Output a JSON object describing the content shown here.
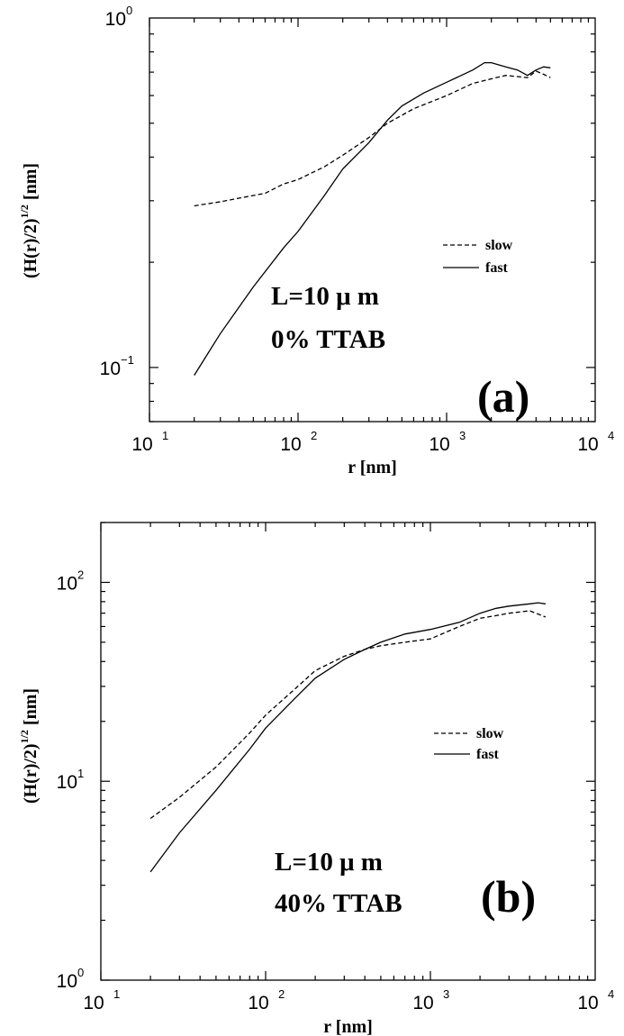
{
  "chart_data": [
    {
      "type": "line",
      "panel_label": "(a)",
      "annotation_lines": [
        "L=10 μ m",
        "0% TTAB"
      ],
      "xlabel": "r [nm]",
      "ylabel": {
        "main": "(H(r)/2)",
        "sup": "1/2",
        "unit": " [nm]"
      },
      "x_scale": "log",
      "y_scale": "log",
      "xlim": [
        10,
        10000
      ],
      "ylim": [
        0.07,
        1
      ],
      "x_ticks": [
        {
          "value": 10,
          "base": "10",
          "exp": "1"
        },
        {
          "value": 100,
          "base": "10",
          "exp": "2"
        },
        {
          "value": 1000,
          "base": "10",
          "exp": "3"
        },
        {
          "value": 10000,
          "base": "10",
          "exp": "4"
        }
      ],
      "y_ticks": [
        {
          "value": 0.1,
          "base": "10",
          "exp": "−1"
        },
        {
          "value": 1,
          "base": "10",
          "exp": "0"
        }
      ],
      "grid": false,
      "legend_position": "right",
      "series": [
        {
          "name": "slow",
          "dash": "dashed",
          "color": "#000000",
          "x": [
            20,
            30,
            40,
            60,
            80,
            100,
            150,
            200,
            300,
            400,
            600,
            1000,
            1500,
            2000,
            2500,
            3000,
            3500,
            4000,
            4500,
            5000
          ],
          "y": [
            0.29,
            0.298,
            0.305,
            0.315,
            0.335,
            0.345,
            0.375,
            0.405,
            0.455,
            0.5,
            0.55,
            0.6,
            0.65,
            0.67,
            0.685,
            0.68,
            0.675,
            0.705,
            0.69,
            0.675
          ]
        },
        {
          "name": "fast",
          "dash": "solid",
          "color": "#000000",
          "x": [
            20,
            30,
            50,
            80,
            100,
            150,
            200,
            300,
            400,
            500,
            700,
            1000,
            1500,
            1800,
            2000,
            2500,
            3000,
            3500,
            4000,
            4500,
            5000
          ],
          "y": [
            0.095,
            0.125,
            0.17,
            0.22,
            0.245,
            0.31,
            0.37,
            0.44,
            0.51,
            0.56,
            0.61,
            0.655,
            0.71,
            0.745,
            0.745,
            0.725,
            0.71,
            0.685,
            0.71,
            0.725,
            0.72
          ]
        }
      ]
    },
    {
      "type": "line",
      "panel_label": "(b)",
      "annotation_lines": [
        "L=10 μ m",
        "40% TTAB"
      ],
      "xlabel": "r [nm]",
      "ylabel": {
        "main": "(H(r)/2)",
        "sup": "1/2",
        "unit": " [nm]"
      },
      "x_scale": "log",
      "y_scale": "log",
      "xlim": [
        10,
        10000
      ],
      "ylim": [
        1,
        200
      ],
      "x_ticks": [
        {
          "value": 10,
          "base": "10",
          "exp": "1"
        },
        {
          "value": 100,
          "base": "10",
          "exp": "2"
        },
        {
          "value": 1000,
          "base": "10",
          "exp": "3"
        },
        {
          "value": 10000,
          "base": "10",
          "exp": "4"
        }
      ],
      "y_ticks": [
        {
          "value": 1,
          "base": "10",
          "exp": "0"
        },
        {
          "value": 10,
          "base": "10",
          "exp": "1"
        },
        {
          "value": 100,
          "base": "10",
          "exp": "2"
        }
      ],
      "grid": false,
      "legend_position": "right",
      "series": [
        {
          "name": "slow",
          "dash": "dashed",
          "color": "#000000",
          "x": [
            20,
            30,
            50,
            80,
            100,
            150,
            200,
            300,
            400,
            500,
            700,
            1000,
            1500,
            2000,
            2500,
            3000,
            4000,
            5000
          ],
          "y": [
            6.5,
            8.3,
            11.8,
            17.5,
            21.5,
            29,
            36,
            42.5,
            46,
            48,
            50,
            52,
            60,
            66,
            68,
            70,
            72,
            67
          ]
        },
        {
          "name": "fast",
          "dash": "solid",
          "color": "#000000",
          "x": [
            20,
            30,
            50,
            80,
            100,
            150,
            200,
            300,
            400,
            500,
            700,
            1000,
            1500,
            2000,
            2500,
            3000,
            4000,
            4500,
            5000
          ],
          "y": [
            3.5,
            5.5,
            9.0,
            14.5,
            18.5,
            26,
            33,
            41,
            46,
            50,
            55,
            58,
            63,
            70,
            74,
            76,
            78,
            79,
            78
          ]
        }
      ]
    }
  ]
}
